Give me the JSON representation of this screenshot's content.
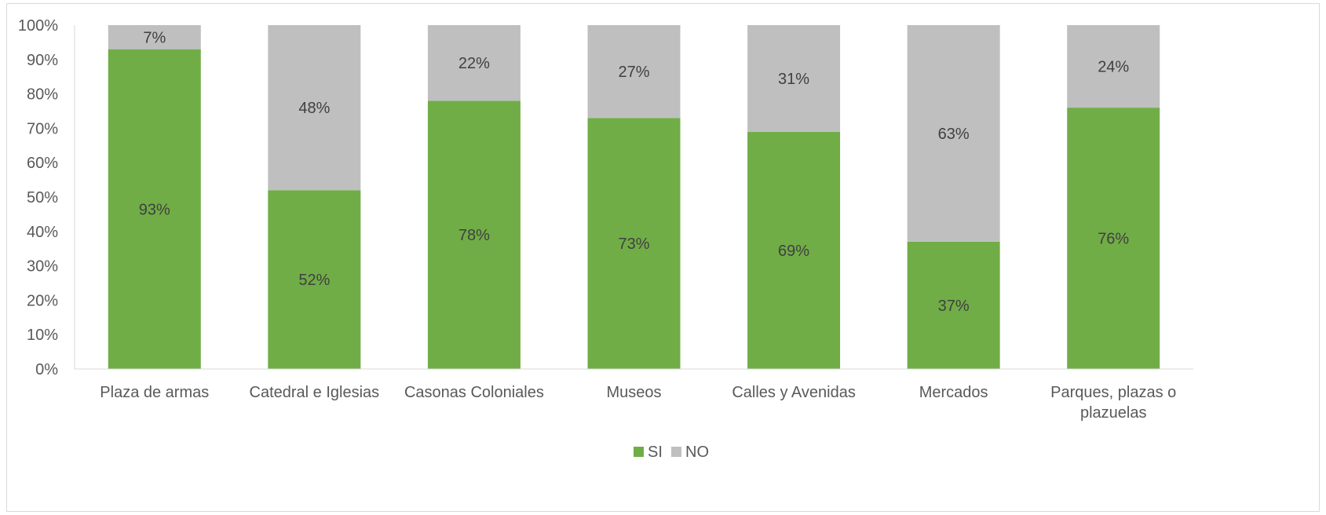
{
  "chart_data": {
    "type": "bar",
    "stacked": true,
    "percent_stacked": true,
    "categories": [
      [
        "Plaza de armas"
      ],
      [
        "Catedral e Iglesias"
      ],
      [
        "Casonas Coloniales"
      ],
      [
        "Museos"
      ],
      [
        "Calles y Avenidas"
      ],
      [
        "Mercados"
      ],
      [
        "Parques, plazas o",
        "plazuelas"
      ]
    ],
    "series": [
      {
        "name": "SI",
        "color": "#70ad47",
        "values": [
          93,
          52,
          78,
          73,
          69,
          37,
          76
        ],
        "labels": [
          "93%",
          "52%",
          "78%",
          "73%",
          "69%",
          "37%",
          "76%"
        ]
      },
      {
        "name": "NO",
        "color": "#bfbfbf",
        "values": [
          7,
          48,
          22,
          27,
          31,
          63,
          24
        ],
        "labels": [
          "7%",
          "48%",
          "22%",
          "27%",
          "31%",
          "63%",
          "24%"
        ]
      }
    ],
    "ylim": [
      0,
      100
    ],
    "yticks": [
      "0%",
      "10%",
      "20%",
      "30%",
      "40%",
      "50%",
      "60%",
      "70%",
      "80%",
      "90%",
      "100%"
    ],
    "grid": false,
    "legend_position": "bottom"
  }
}
